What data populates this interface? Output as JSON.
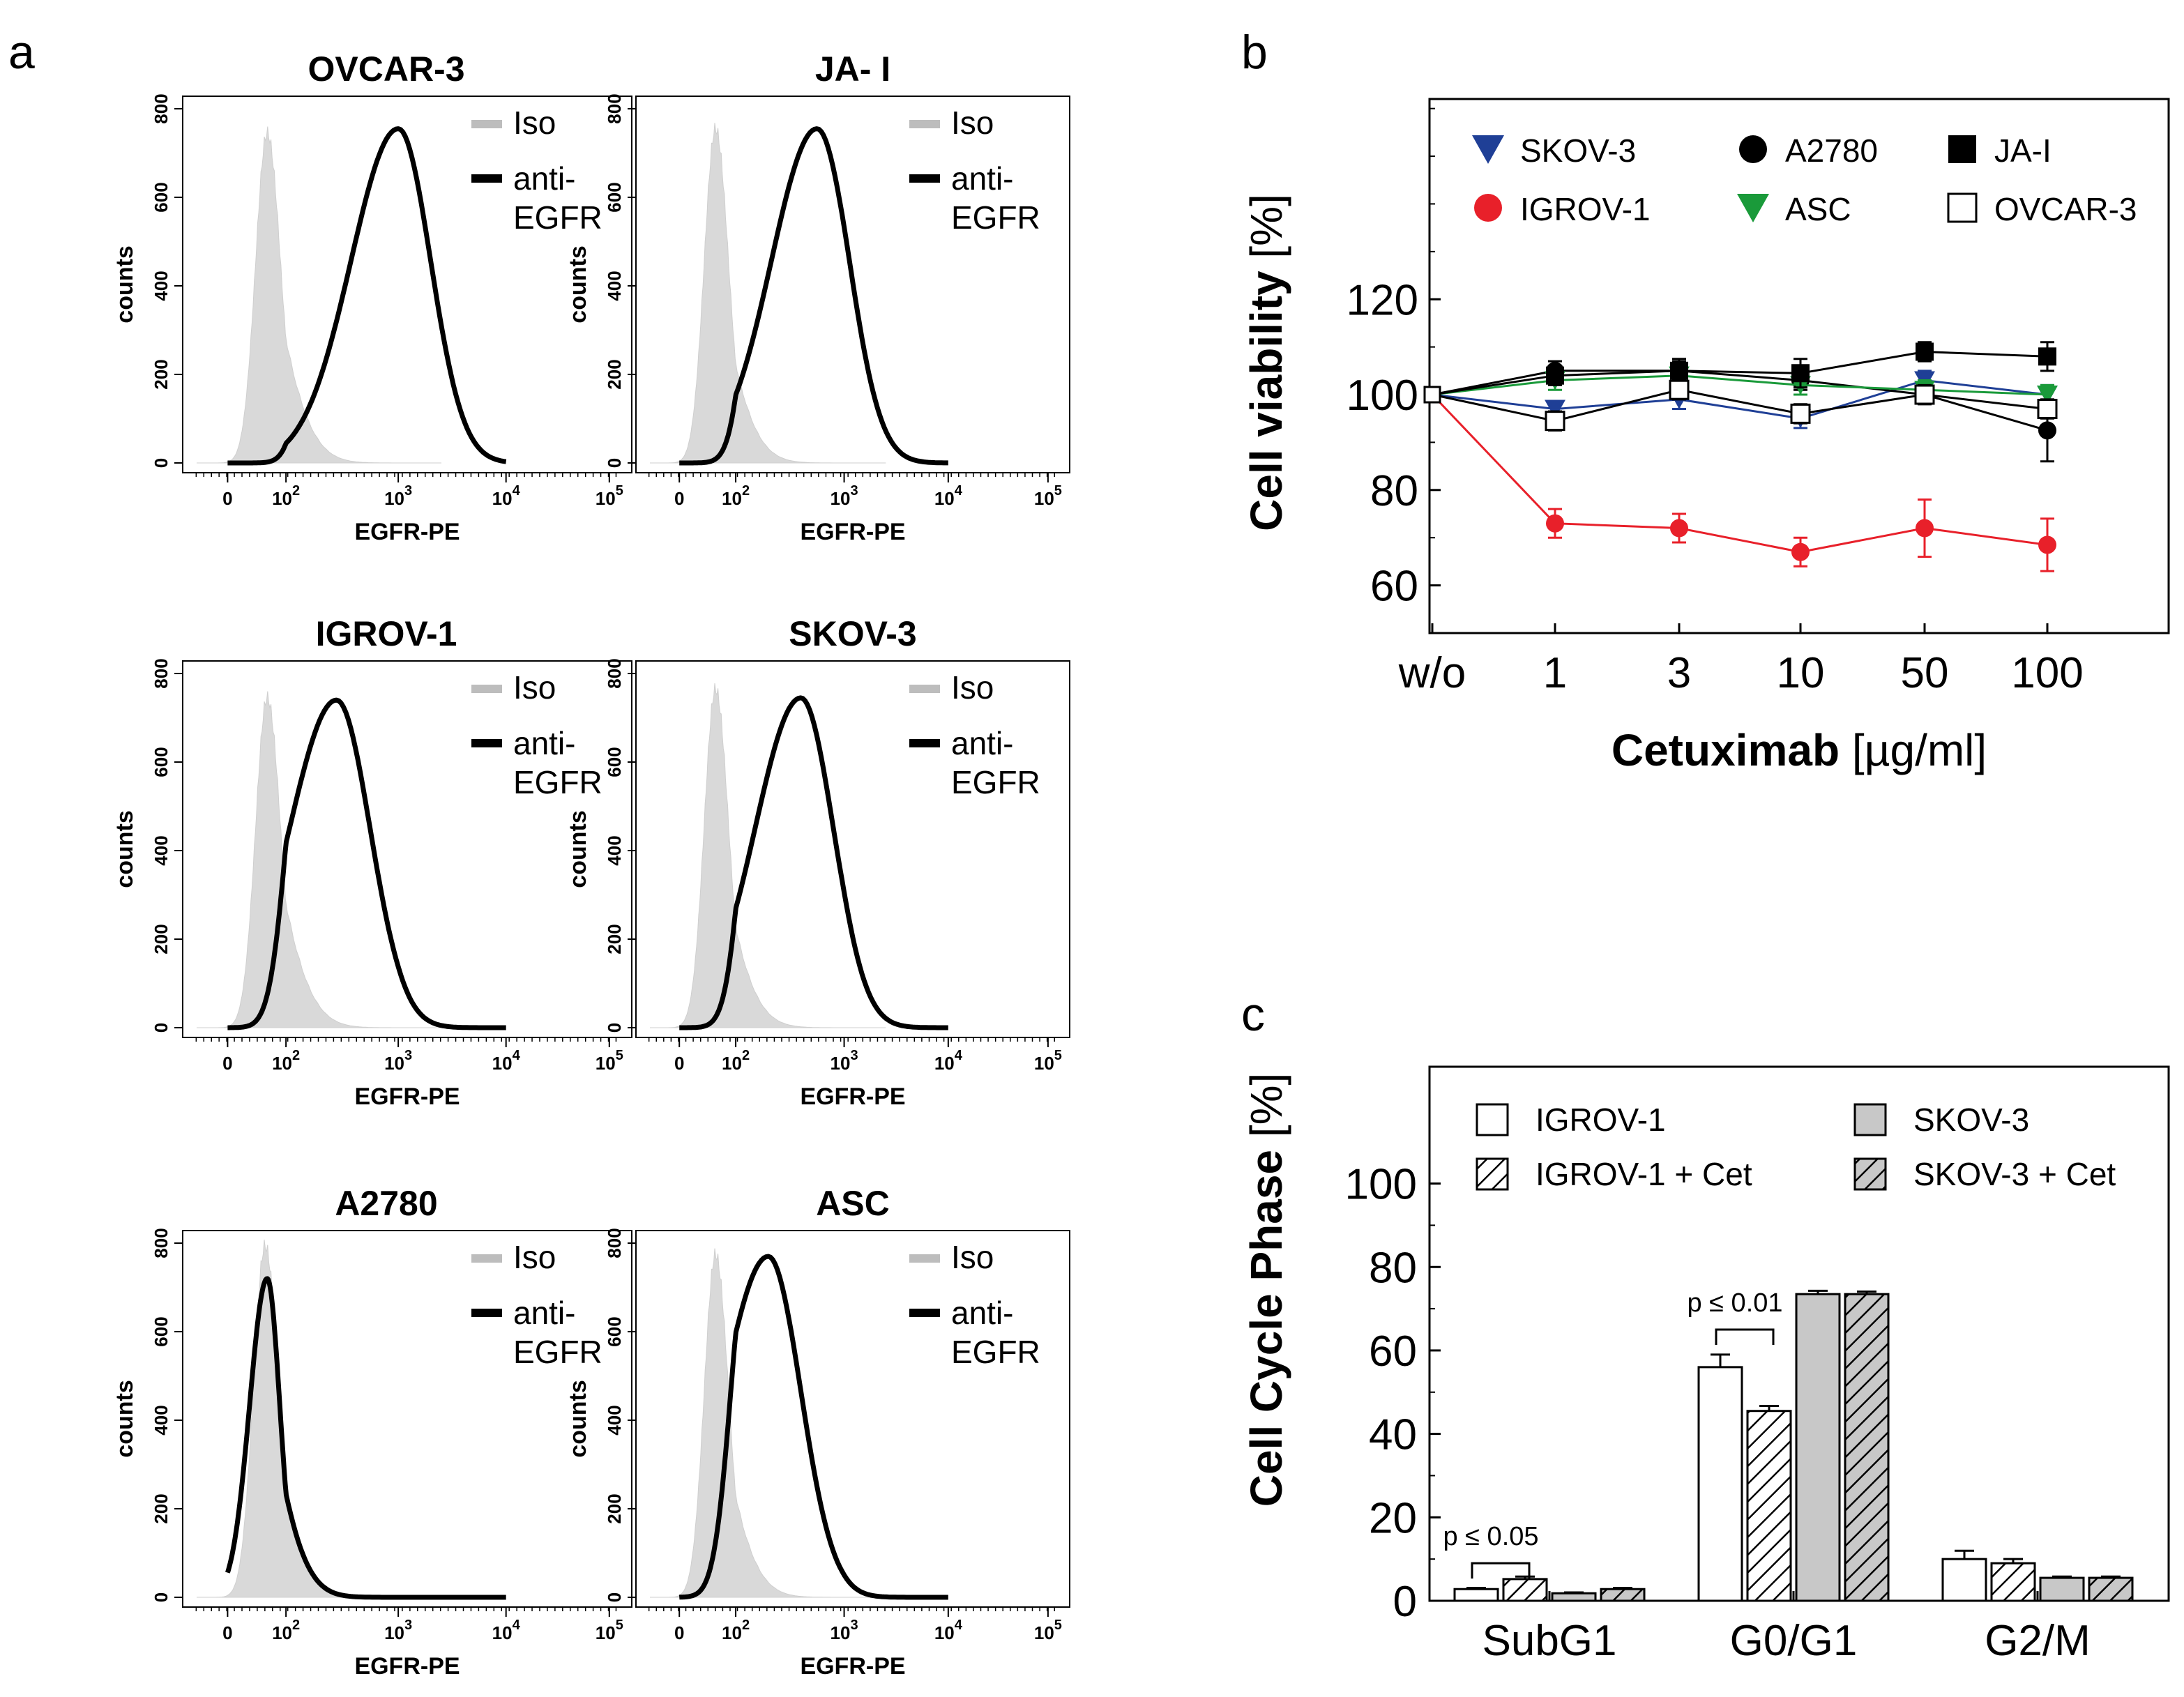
{
  "panel_labels": {
    "a": "a",
    "b": "b",
    "c": "c"
  },
  "colors": {
    "iso_fill": "#d9d9d9",
    "egfr_line": "#000000",
    "skov3": "#1f3f96",
    "a2780": "#000000",
    "jai": "#000000",
    "igrov1": "#e8202a",
    "asc": "#1a9a3a",
    "ovcar3": "#ffffff",
    "bar_gray": "#c8c8c8"
  },
  "chart_data": [
    {
      "id": "flow_histograms",
      "type": "area",
      "xlabel": "EGFR-PE",
      "ylabel": "counts",
      "y_ticks": [
        "0",
        "200",
        "400",
        "600",
        "800"
      ],
      "ylim": [
        0,
        800
      ],
      "legend": {
        "iso": "Iso",
        "egfr_line1": "anti-",
        "egfr_line2": "EGFR"
      },
      "x_ticks": [
        {
          "base": "0",
          "exp": ""
        },
        {
          "base": "10",
          "exp": "2"
        },
        {
          "base": "10",
          "exp": "3"
        },
        {
          "base": "10",
          "exp": "4"
        },
        {
          "base": "10",
          "exp": "5"
        }
      ],
      "panels": [
        {
          "title": "OVCAR-3",
          "iso_peak_log": 1.55,
          "iso_height": 760,
          "egfr_peak_log": 3.0,
          "egfr_height": 755
        },
        {
          "title": "JA- I",
          "iso_peak_log": 1.5,
          "iso_height": 770,
          "egfr_peak_log": 2.75,
          "egfr_height": 755
        },
        {
          "title": "IGROV-1",
          "iso_peak_log": 1.55,
          "iso_height": 760,
          "egfr_peak_log": 2.45,
          "egfr_height": 740
        },
        {
          "title": "SKOV-3",
          "iso_peak_log": 1.5,
          "iso_height": 780,
          "egfr_peak_log": 2.6,
          "egfr_height": 745
        },
        {
          "title": "A2780",
          "iso_peak_log": 1.5,
          "iso_height": 810,
          "egfr_peak_log": 1.55,
          "egfr_height": 720
        },
        {
          "title": "ASC",
          "iso_peak_log": 1.5,
          "iso_height": 790,
          "egfr_peak_log": 2.3,
          "egfr_height": 770
        }
      ]
    },
    {
      "id": "viability",
      "type": "line",
      "title": "",
      "xlabel_bold": "Cetuximab",
      "xlabel_unit": " [µg/ml]",
      "ylabel_bold": "Cell viability",
      "ylabel_unit": " [%]",
      "categories": [
        "w/o",
        "1",
        "3",
        "10",
        "50",
        "100"
      ],
      "y_ticks": [
        "60",
        "80",
        "100",
        "120"
      ],
      "ylim": [
        50,
        162
      ],
      "series": [
        {
          "name": "SKOV-3",
          "marker": "triangle-down",
          "values": [
            100,
            97,
            99,
            95,
            103,
            100
          ],
          "errors": [
            0,
            1.5,
            2,
            2,
            2,
            2
          ]
        },
        {
          "name": "IGROV-1",
          "marker": "circle",
          "values": [
            100,
            73,
            72,
            67,
            72,
            68.5
          ],
          "errors": [
            0,
            3,
            3,
            3,
            6,
            5.5
          ]
        },
        {
          "name": "A2780",
          "marker": "circle",
          "values": [
            100,
            105,
            105,
            103,
            100,
            92.5
          ],
          "errors": [
            0,
            2,
            2,
            2,
            2,
            6.5
          ]
        },
        {
          "name": "ASC",
          "marker": "triangle-down",
          "values": [
            100,
            103,
            104,
            102,
            101,
            100
          ],
          "errors": [
            0,
            2,
            2,
            2,
            2,
            2
          ]
        },
        {
          "name": "JA-I",
          "marker": "square",
          "values": [
            100,
            104,
            105,
            104.5,
            109,
            108
          ],
          "errors": [
            0,
            2,
            2.5,
            3,
            2,
            3
          ]
        },
        {
          "name": "OVCAR-3",
          "marker": "square-open",
          "values": [
            100,
            94.5,
            101,
            96,
            100,
            97
          ],
          "errors": [
            0,
            2,
            2,
            2,
            2,
            2
          ]
        }
      ]
    },
    {
      "id": "cell_cycle",
      "type": "bar",
      "ylabel_bold": "Cell Cycle Phase",
      "ylabel_unit": " [%]",
      "categories": [
        "SubG1",
        "G0/G1",
        "G2/M"
      ],
      "y_ticks": [
        "0",
        "20",
        "40",
        "60",
        "80",
        "100"
      ],
      "ylim": [
        0,
        128
      ],
      "series": [
        {
          "name": "IGROV-1",
          "style": "white",
          "values": [
            2.8,
            56,
            10
          ],
          "errors": [
            0.3,
            3,
            2
          ]
        },
        {
          "name": "IGROV-1 + Cet",
          "style": "white-hatch",
          "values": [
            5.2,
            45.5,
            9
          ],
          "errors": [
            0.6,
            1.2,
            1
          ]
        },
        {
          "name": "SKOV-3",
          "style": "gray",
          "values": [
            1.8,
            73.5,
            5.5
          ],
          "errors": [
            0.2,
            0.8,
            0.3
          ]
        },
        {
          "name": "SKOV-3 + Cet",
          "style": "gray-hatch",
          "values": [
            2.8,
            73.5,
            5.5
          ],
          "errors": [
            0.3,
            0.6,
            0.3
          ]
        }
      ],
      "annotations": [
        {
          "text": "p ≤ 0.05",
          "category": 0,
          "bracket_value": 9
        },
        {
          "text": "p ≤ 0.01",
          "category": 1,
          "bracket_value": 65
        }
      ]
    }
  ]
}
